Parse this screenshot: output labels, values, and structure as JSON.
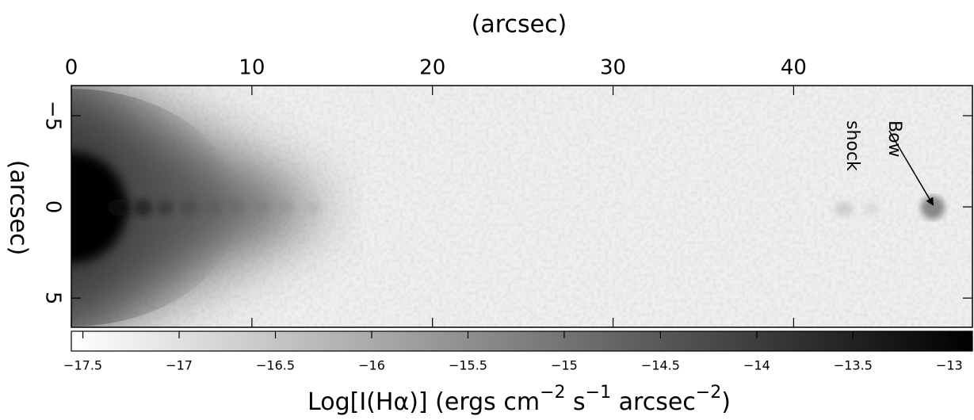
{
  "chart_data": {
    "type": "image",
    "x_label": "(arcsec)",
    "y_label": "(arcsec)",
    "xlim": [
      0,
      49.9
    ],
    "xticks": [
      0,
      10,
      20,
      30,
      40
    ],
    "ylim": [
      -6.65,
      6.6
    ],
    "yticks": [
      {
        "value": -5,
        "label": "−5"
      },
      0,
      5
    ],
    "colorbar": {
      "lim": [
        -17.56,
        -12.88
      ],
      "colors": [
        "#ffffff",
        "#000000"
      ],
      "ticks": [
        {
          "value": -17.5,
          "label": "−17.5"
        },
        {
          "value": -17,
          "label": "−17"
        },
        {
          "value": -16.5,
          "label": "−16.5"
        },
        {
          "value": -16,
          "label": "−16"
        },
        {
          "value": -15.5,
          "label": "−15.5"
        },
        {
          "value": -15,
          "label": "−15"
        },
        {
          "value": -14.5,
          "label": "−14.5"
        },
        {
          "value": -14,
          "label": "−14"
        },
        {
          "value": -13.5,
          "label": "−13.5"
        },
        {
          "value": -13,
          "label": "−13"
        }
      ],
      "label_parts": [
        "Log[I(Hα)] (ergs cm",
        "−2",
        " s",
        "−1",
        " arcsec",
        "−2",
        ")"
      ],
      "superscript": [
        false,
        true,
        false,
        true,
        false,
        true,
        false
      ]
    },
    "annotation": {
      "lines": [
        "Bow",
        "shock"
      ]
    }
  }
}
